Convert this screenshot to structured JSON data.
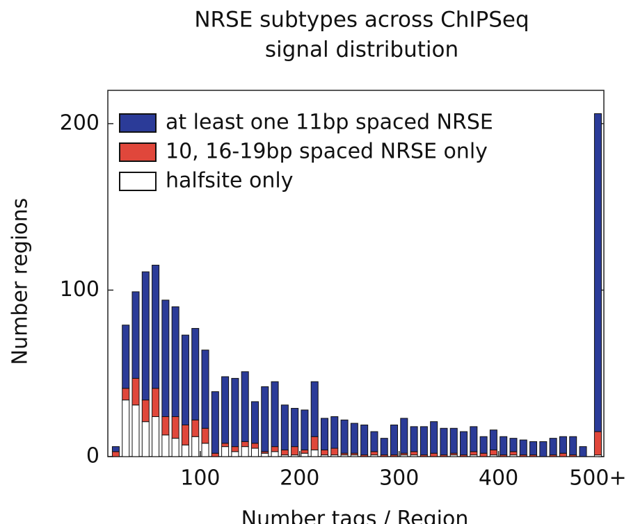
{
  "chart_data": {
    "type": "bar",
    "stacked": true,
    "title": [
      "NRSE subtypes across ChIPSeq",
      "signal distribution"
    ],
    "x_label": "Number tags / Region",
    "y_label": "Number regions",
    "x": [
      15,
      25,
      35,
      45,
      55,
      65,
      75,
      85,
      95,
      105,
      115,
      125,
      135,
      145,
      155,
      165,
      175,
      185,
      195,
      205,
      215,
      225,
      235,
      245,
      255,
      265,
      275,
      285,
      295,
      305,
      315,
      325,
      335,
      345,
      355,
      365,
      375,
      385,
      395,
      405,
      415,
      425,
      435,
      445,
      455,
      465,
      475,
      485,
      500
    ],
    "series": [
      {
        "name": "at least one 11bp spaced NRSE",
        "color": "#2b3b98",
        "values": [
          3,
          38,
          52,
          77,
          74,
          70,
          66,
          54,
          55,
          47,
          37,
          40,
          41,
          42,
          25,
          39,
          39,
          27,
          23,
          24,
          33,
          19,
          19,
          20,
          18,
          18,
          12,
          10,
          18,
          21,
          15,
          17,
          19,
          16,
          15,
          14,
          15,
          10,
          12,
          11,
          8,
          9,
          8,
          9,
          10,
          10,
          11,
          6,
          191
        ]
      },
      {
        "name": "10, 16-19bp spaced NRSE only",
        "color": "#e0473b",
        "values": [
          3,
          7,
          16,
          13,
          17,
          11,
          13,
          12,
          10,
          9,
          2,
          2,
          3,
          3,
          3,
          1,
          3,
          3,
          5,
          2,
          8,
          3,
          4,
          1,
          1,
          1,
          2,
          1,
          1,
          1,
          2,
          1,
          2,
          1,
          1,
          1,
          2,
          2,
          3,
          1,
          2,
          1,
          1,
          0,
          1,
          2,
          1,
          0,
          14
        ]
      },
      {
        "name": "halfsite only",
        "color": "#ffffff",
        "values": [
          0,
          34,
          31,
          21,
          24,
          13,
          11,
          7,
          12,
          8,
          0,
          6,
          3,
          6,
          5,
          2,
          3,
          1,
          1,
          2,
          4,
          1,
          1,
          1,
          1,
          0,
          1,
          0,
          0,
          1,
          1,
          0,
          0,
          0,
          1,
          0,
          1,
          0,
          1,
          0,
          1,
          0,
          0,
          0,
          0,
          0,
          0,
          0,
          1
        ]
      }
    ],
    "bar_width": 7,
    "xlim": [
      7,
      506
    ],
    "xticks": [
      100,
      200,
      300,
      400,
      {
        "value": 500,
        "label": "500+"
      }
    ],
    "ylim": [
      0,
      220
    ],
    "yticks": [
      0,
      100,
      200
    ],
    "legend": "upper left"
  }
}
